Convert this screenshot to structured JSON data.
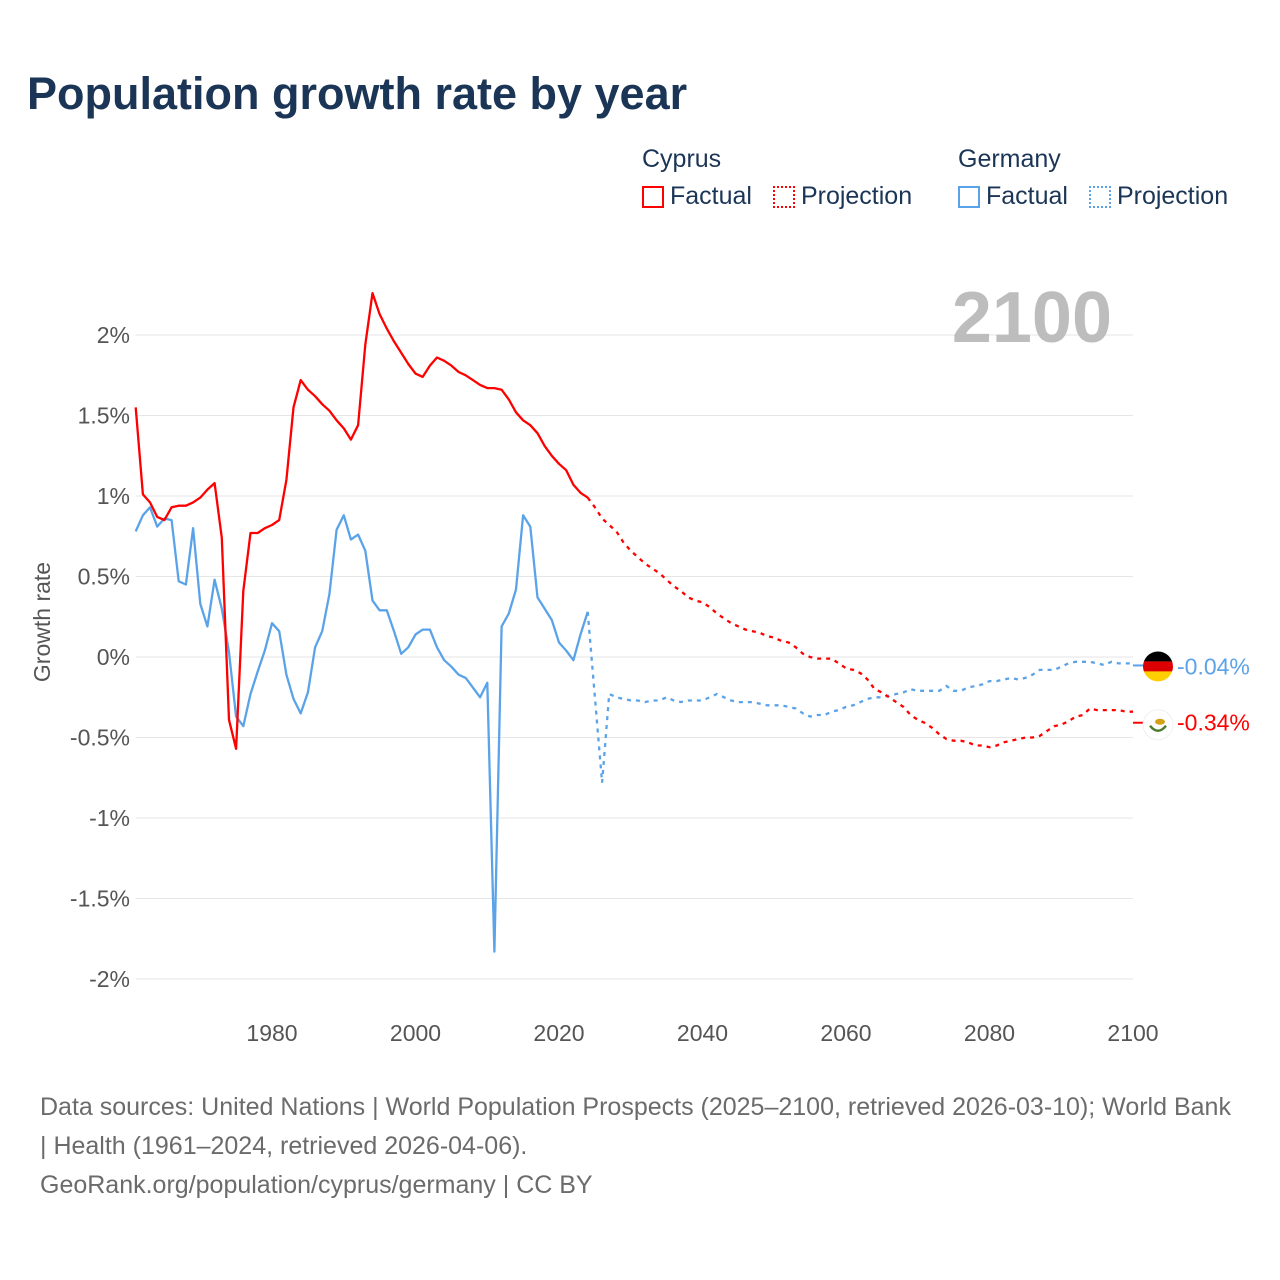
{
  "chart_data": {
    "type": "line",
    "title": "Population growth rate by year",
    "ylabel": "Growth rate",
    "xlabel": "",
    "xlim": [
      1961,
      2100
    ],
    "ylim": [
      -2.2,
      2.5
    ],
    "x_ticks": [
      "1980",
      "2000",
      "2020",
      "2040",
      "2060",
      "2080",
      "2100"
    ],
    "y_ticks": [
      {
        "v": 2,
        "label": "2%"
      },
      {
        "v": 1.5,
        "label": "1.5%"
      },
      {
        "v": 1,
        "label": "1%"
      },
      {
        "v": 0.5,
        "label": "0.5%"
      },
      {
        "v": 0,
        "label": "0%"
      },
      {
        "v": -0.5,
        "label": "-0.5%"
      },
      {
        "v": -1,
        "label": "-1%"
      },
      {
        "v": -1.5,
        "label": "-1.5%"
      },
      {
        "v": -2,
        "label": "-2%"
      }
    ],
    "grid": true,
    "year_display": "2100",
    "legend_placement": "top-right",
    "series": [
      {
        "name": "Cyprus",
        "color": "#ff0000",
        "end_label": "-0.34%",
        "factual": {
          "label": "Factual",
          "start_year": 1961,
          "values": [
            1.55,
            1.01,
            0.96,
            0.87,
            0.85,
            0.93,
            0.94,
            0.94,
            0.96,
            0.99,
            1.04,
            1.08,
            0.74,
            -0.39,
            -0.57,
            0.41,
            0.77,
            0.77,
            0.8,
            0.82,
            0.85,
            1.1,
            1.55,
            1.72,
            1.66,
            1.62,
            1.57,
            1.53,
            1.47,
            1.42,
            1.35,
            1.44,
            1.94,
            2.26,
            2.13,
            2.04,
            1.96,
            1.89,
            1.82,
            1.76,
            1.74,
            1.81,
            1.86,
            1.84,
            1.81,
            1.77,
            1.75,
            1.72,
            1.69,
            1.67,
            1.67,
            1.66,
            1.6,
            1.52,
            1.47,
            1.44,
            1.39,
            1.31,
            1.25,
            1.2,
            1.16,
            1.07,
            1.02,
            0.99
          ]
        },
        "projection": {
          "label": "Projection",
          "start_year": 2024,
          "values": [
            0.99,
            0.93,
            0.86,
            0.82,
            0.78,
            0.71,
            0.66,
            0.62,
            0.58,
            0.55,
            0.52,
            0.48,
            0.44,
            0.41,
            0.37,
            0.35,
            0.34,
            0.31,
            0.27,
            0.24,
            0.21,
            0.19,
            0.17,
            0.16,
            0.15,
            0.13,
            0.12,
            0.1,
            0.09,
            0.06,
            0.02,
            0.0,
            -0.01,
            -0.01,
            -0.01,
            -0.04,
            -0.07,
            -0.08,
            -0.1,
            -0.14,
            -0.2,
            -0.22,
            -0.25,
            -0.28,
            -0.31,
            -0.36,
            -0.39,
            -0.41,
            -0.44,
            -0.48,
            -0.51,
            -0.52,
            -0.52,
            -0.53,
            -0.55,
            -0.55,
            -0.56,
            -0.55,
            -0.53,
            -0.52,
            -0.51,
            -0.5,
            -0.5,
            -0.49,
            -0.46,
            -0.43,
            -0.42,
            -0.4,
            -0.37,
            -0.36,
            -0.32,
            -0.33,
            -0.33,
            -0.33,
            -0.33,
            -0.34,
            -0.34
          ]
        }
      },
      {
        "name": "Germany",
        "color": "#5ba3e8",
        "end_label": "-0.04%",
        "factual": {
          "label": "Factual",
          "start_year": 1961,
          "values": [
            0.78,
            0.88,
            0.93,
            0.81,
            0.86,
            0.85,
            0.47,
            0.45,
            0.8,
            0.33,
            0.19,
            0.48,
            0.3,
            0.03,
            -0.37,
            -0.43,
            -0.23,
            -0.09,
            0.04,
            0.21,
            0.16,
            -0.11,
            -0.26,
            -0.35,
            -0.22,
            0.06,
            0.16,
            0.39,
            0.79,
            0.88,
            0.73,
            0.76,
            0.66,
            0.35,
            0.29,
            0.29,
            0.16,
            0.02,
            0.06,
            0.14,
            0.17,
            0.17,
            0.06,
            -0.02,
            -0.06,
            -0.11,
            -0.13,
            -0.19,
            -0.25,
            -0.16,
            -1.83,
            0.19,
            0.27,
            0.42,
            0.88,
            0.81,
            0.37,
            0.3,
            0.23,
            0.09,
            0.04,
            -0.02,
            0.14,
            0.28
          ]
        },
        "projection": {
          "label": "Projection",
          "start_year": 2024,
          "values": [
            0.28,
            -0.25,
            -0.78,
            -0.23,
            -0.25,
            -0.26,
            -0.27,
            -0.27,
            -0.28,
            -0.27,
            -0.27,
            -0.25,
            -0.27,
            -0.28,
            -0.27,
            -0.27,
            -0.27,
            -0.25,
            -0.23,
            -0.25,
            -0.27,
            -0.28,
            -0.28,
            -0.28,
            -0.29,
            -0.3,
            -0.3,
            -0.3,
            -0.31,
            -0.32,
            -0.35,
            -0.37,
            -0.36,
            -0.36,
            -0.34,
            -0.33,
            -0.31,
            -0.3,
            -0.28,
            -0.26,
            -0.25,
            -0.25,
            -0.24,
            -0.23,
            -0.22,
            -0.2,
            -0.21,
            -0.21,
            -0.21,
            -0.21,
            -0.18,
            -0.21,
            -0.21,
            -0.19,
            -0.18,
            -0.17,
            -0.15,
            -0.15,
            -0.14,
            -0.13,
            -0.14,
            -0.13,
            -0.11,
            -0.08,
            -0.08,
            -0.08,
            -0.06,
            -0.04,
            -0.03,
            -0.03,
            -0.03,
            -0.04,
            -0.05,
            -0.03,
            -0.04,
            -0.04,
            -0.04
          ]
        }
      }
    ]
  },
  "legend": {
    "groups": [
      {
        "name": "Cyprus",
        "items": [
          "Factual",
          "Projection"
        ]
      },
      {
        "name": "Germany",
        "items": [
          "Factual",
          "Projection"
        ]
      }
    ]
  },
  "footer": {
    "sources": "Data sources: United Nations | World Population Prospects (2025–2100, retrieved 2026-03-10); World Bank | Health (1961–2024, retrieved 2026-04-06).",
    "attribution": "GeoRank.org/population/cyprus/germany | CC BY"
  }
}
